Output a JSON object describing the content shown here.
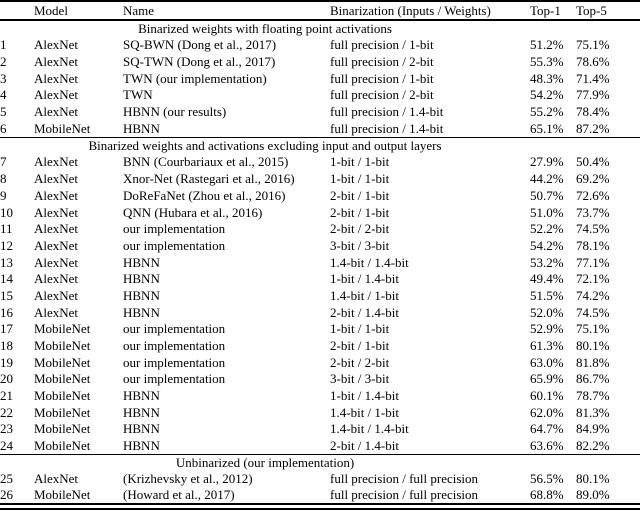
{
  "paper_table": {
    "header": {
      "model": "Model",
      "name": "Name",
      "binarization": "Binarization (Inputs / Weights)",
      "top1": "Top-1",
      "top5": "Top-5"
    },
    "sections": [
      {
        "title": "Binarized weights with floating point activations",
        "rows": [
          [
            "1",
            "AlexNet",
            "SQ-BWN (Dong et al., 2017)",
            "full precision / 1-bit",
            "51.2%",
            "75.1%"
          ],
          [
            "2",
            "AlexNet",
            "SQ-TWN (Dong et al., 2017)",
            "full precision / 2-bit",
            "55.3%",
            "78.6%"
          ],
          [
            "3",
            "AlexNet",
            "TWN (our implementation)",
            "full precision / 1-bit",
            "48.3%",
            "71.4%"
          ],
          [
            "4",
            "AlexNet",
            "TWN",
            "full precision / 2-bit",
            "54.2%",
            "77.9%"
          ],
          [
            "5",
            "AlexNet",
            "HBNN (our results)",
            "full precision / 1.4-bit",
            "55.2%",
            "78.4%"
          ],
          [
            "6",
            "MobileNet",
            "HBNN",
            "full precision / 1.4-bit",
            "65.1%",
            "87.2%"
          ]
        ]
      },
      {
        "title": "Binarized weights and activations excluding input and output layers",
        "rows": [
          [
            "7",
            "AlexNet",
            "BNN (Courbariaux et al., 2015)",
            "1-bit / 1-bit",
            "27.9%",
            "50.4%"
          ],
          [
            "8",
            "AlexNet",
            "Xnor-Net (Rastegari et al., 2016)",
            "1-bit / 1-bit",
            "44.2%",
            "69.2%"
          ],
          [
            "9",
            "AlexNet",
            "DoReFaNet (Zhou et al., 2016)",
            "2-bit / 1-bit",
            "50.7%",
            "72.6%"
          ],
          [
            "10",
            "AlexNet",
            "QNN (Hubara et al., 2016)",
            "2-bit / 1-bit",
            "51.0%",
            "73.7%"
          ],
          [
            "11",
            "AlexNet",
            "our implementation",
            "2-bit / 2-bit",
            "52.2%",
            "74.5%"
          ],
          [
            "12",
            "AlexNet",
            "our implementation",
            "3-bit / 3-bit",
            "54.2%",
            "78.1%"
          ],
          [
            "13",
            "AlexNet",
            "HBNN",
            "1.4-bit / 1.4-bit",
            "53.2%",
            "77.1%"
          ],
          [
            "14",
            "AlexNet",
            "HBNN",
            "1-bit / 1.4-bit",
            "49.4%",
            "72.1%"
          ],
          [
            "15",
            "AlexNet",
            "HBNN",
            "1.4-bit / 1-bit",
            "51.5%",
            "74.2%"
          ],
          [
            "16",
            "AlexNet",
            "HBNN",
            "2-bit / 1.4-bit",
            "52.0%",
            "74.5%"
          ],
          [
            "17",
            "MobileNet",
            "our implementation",
            "1-bit / 1-bit",
            "52.9%",
            "75.1%"
          ],
          [
            "18",
            "MobileNet",
            "our implementation",
            "2-bit / 1-bit",
            "61.3%",
            "80.1%"
          ],
          [
            "19",
            "MobileNet",
            "our implementation",
            "2-bit / 2-bit",
            "63.0%",
            "81.8%"
          ],
          [
            "20",
            "MobileNet",
            "our implementation",
            "3-bit / 3-bit",
            "65.9%",
            "86.7%"
          ],
          [
            "21",
            "MobileNet",
            "HBNN",
            "1-bit / 1.4-bit",
            "60.1%",
            "78.7%"
          ],
          [
            "22",
            "MobileNet",
            "HBNN",
            "1.4-bit / 1-bit",
            "62.0%",
            "81.3%"
          ],
          [
            "23",
            "MobileNet",
            "HBNN",
            "1.4-bit / 1.4-bit",
            "64.7%",
            "84.9%"
          ],
          [
            "24",
            "MobileNet",
            "HBNN",
            "2-bit / 1.4-bit",
            "63.6%",
            "82.2%"
          ]
        ]
      },
      {
        "title": "Unbinarized (our implementation)",
        "rows": [
          [
            "25",
            "AlexNet",
            "(Krizhevsky et al., 2012)",
            "full precision / full precision",
            "56.5%",
            "80.1%"
          ],
          [
            "26",
            "MobileNet",
            "(Howard et al., 2017)",
            "full precision / full precision",
            "68.8%",
            "89.0%"
          ]
        ]
      }
    ]
  }
}
